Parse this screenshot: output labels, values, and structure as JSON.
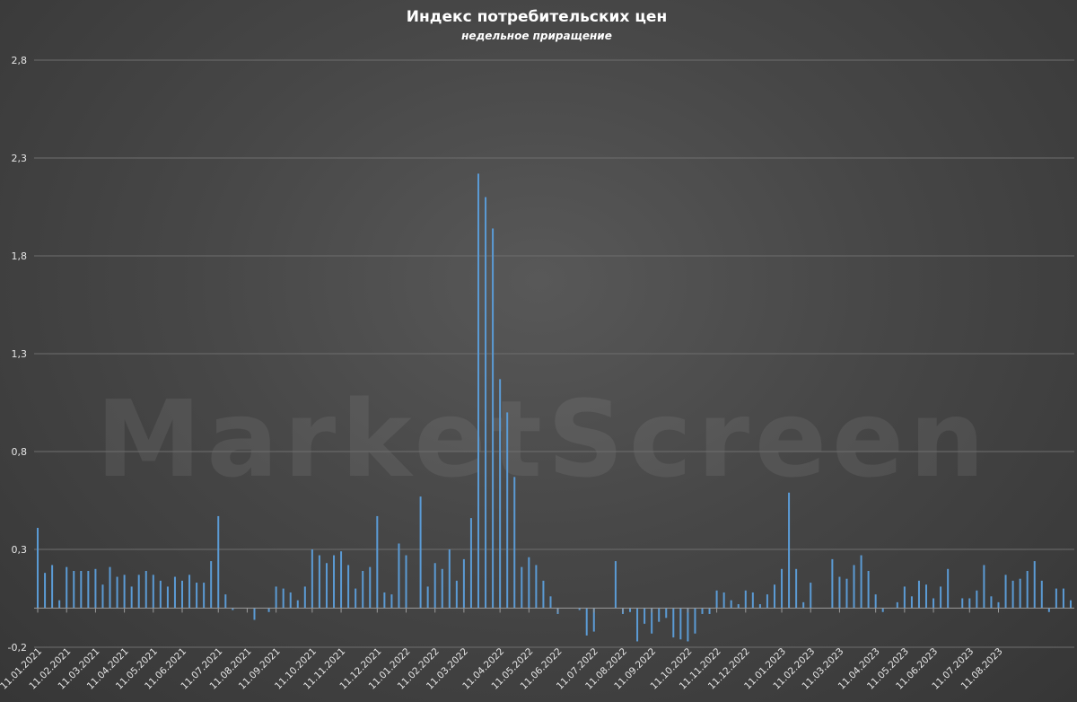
{
  "chart_data": {
    "type": "bar",
    "title": "Индекс потребительских цен",
    "subtitle": "недельное приращение",
    "watermark": "MarketScreen",
    "xlabel": "",
    "ylabel": "",
    "ylim": [
      -0.2,
      2.8
    ],
    "yticks": [
      -0.2,
      0.3,
      0.8,
      1.3,
      1.8,
      2.3,
      2.8
    ],
    "ytick_labels": [
      "-0,2",
      "0,3",
      "0,8",
      "1,3",
      "1,8",
      "2,3",
      "2,8"
    ],
    "grid": true,
    "legend": "none",
    "bar_color": "#5b9bd5",
    "x_ticks": [
      {
        "label": "11.01.2021",
        "week": 0
      },
      {
        "label": "11.02.2021",
        "week": 4
      },
      {
        "label": "11.03.2021",
        "week": 8
      },
      {
        "label": "11.04.2021",
        "week": 12
      },
      {
        "label": "11.05.2021",
        "week": 16
      },
      {
        "label": "11.06.2021",
        "week": 20
      },
      {
        "label": "11.07.2021",
        "week": 25
      },
      {
        "label": "11.08.2021",
        "week": 29
      },
      {
        "label": "11.09.2021",
        "week": 33
      },
      {
        "label": "11.10.2021",
        "week": 38
      },
      {
        "label": "11.11.2021",
        "week": 42
      },
      {
        "label": "11.12.2021",
        "week": 47
      },
      {
        "label": "11.01.2022",
        "week": 51
      },
      {
        "label": "11.02.2022",
        "week": 55
      },
      {
        "label": "11.03.2022",
        "week": 59
      },
      {
        "label": "11.04.2022",
        "week": 64
      },
      {
        "label": "11.05.2022",
        "week": 68
      },
      {
        "label": "11.06.2022",
        "week": 72
      },
      {
        "label": "11.07.2022",
        "week": 77
      },
      {
        "label": "11.08.2022",
        "week": 81
      },
      {
        "label": "11.09.2022",
        "week": 85
      },
      {
        "label": "11.10.2022",
        "week": 90
      },
      {
        "label": "11.11.2022",
        "week": 94
      },
      {
        "label": "11.12.2022",
        "week": 98
      },
      {
        "label": "11.01.2023",
        "week": 103
      },
      {
        "label": "11.02.2023",
        "week": 107
      },
      {
        "label": "11.03.2023",
        "week": 111
      },
      {
        "label": "11.04.2023",
        "week": 116
      },
      {
        "label": "11.05.2023",
        "week": 120
      },
      {
        "label": "11.06.2023",
        "week": 124
      },
      {
        "label": "11.07.2023",
        "week": 129
      },
      {
        "label": "11.08.2023",
        "week": 133
      }
    ],
    "values": [
      0.41,
      0.18,
      0.22,
      0.04,
      0.21,
      0.19,
      0.19,
      0.19,
      0.2,
      0.12,
      0.21,
      0.16,
      0.17,
      0.11,
      0.17,
      0.19,
      0.17,
      0.14,
      0.11,
      0.16,
      0.14,
      0.17,
      0.13,
      0.13,
      0.24,
      0.47,
      0.07,
      -0.01,
      0.0,
      0.0,
      -0.06,
      0.0,
      -0.02,
      0.11,
      0.1,
      0.08,
      0.04,
      0.11,
      0.3,
      0.27,
      0.23,
      0.27,
      0.29,
      0.22,
      0.1,
      0.19,
      0.21,
      0.47,
      0.08,
      0.07,
      0.33,
      0.27,
      0.0,
      0.57,
      0.11,
      0.23,
      0.2,
      0.3,
      0.14,
      0.25,
      0.46,
      2.22,
      2.1,
      1.94,
      1.17,
      1.0,
      0.67,
      0.21,
      0.26,
      0.22,
      0.14,
      0.06,
      -0.03,
      0.0,
      0.0,
      -0.01,
      -0.14,
      -0.12,
      0.0,
      0.0,
      0.24,
      -0.03,
      -0.02,
      -0.17,
      -0.08,
      -0.13,
      -0.07,
      -0.05,
      -0.15,
      -0.16,
      -0.17,
      -0.13,
      -0.03,
      -0.03,
      0.09,
      0.08,
      0.04,
      0.02,
      0.09,
      0.08,
      0.02,
      0.07,
      0.12,
      0.2,
      0.59,
      0.2,
      0.03,
      0.13,
      0.0,
      0.0,
      0.25,
      0.16,
      0.15,
      0.22,
      0.27,
      0.19,
      0.07,
      -0.02,
      0.0,
      0.03,
      0.11,
      0.06,
      0.14,
      0.12,
      0.05,
      0.11,
      0.2,
      0.0,
      0.05,
      0.05,
      0.09,
      0.22,
      0.06,
      0.03,
      0.17,
      0.14,
      0.15,
      0.19,
      0.24,
      0.14,
      -0.02,
      0.1,
      0.1,
      0.04
    ]
  }
}
